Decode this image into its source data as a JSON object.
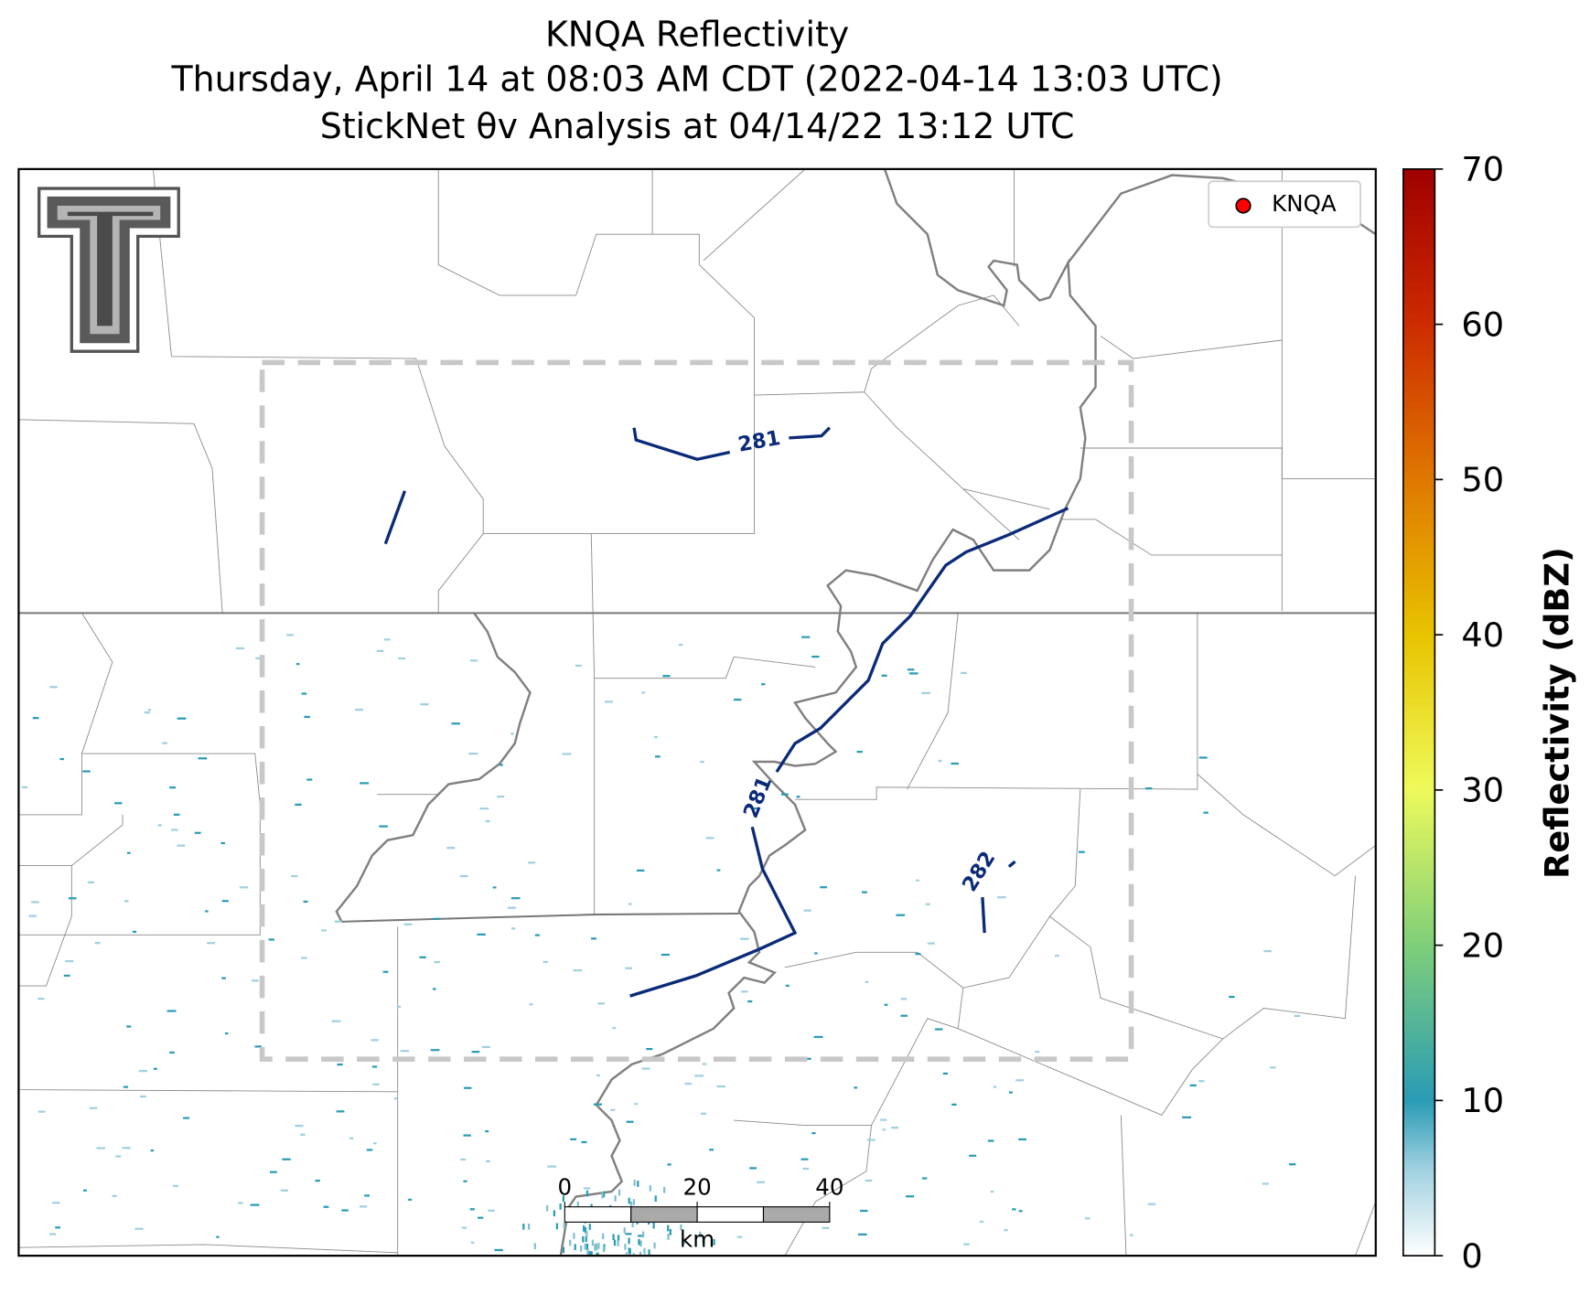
{
  "title": [
    "KNQA Reflectivity",
    "Thursday, April 14 at 08:03 AM CDT (2022-04-14 13:03 UTC)",
    "StickNet θv Analysis at 04/14/22 13:12 UTC"
  ],
  "legend": {
    "label": "KNQA"
  },
  "contour_labels": [
    "281",
    "281",
    "282"
  ],
  "colorbar": {
    "label": "Reflectivity (dBZ)",
    "lim": [
      0,
      70
    ],
    "ticks": [
      0,
      10,
      20,
      30,
      40,
      50,
      60,
      70
    ]
  },
  "scale_bar": {
    "ticks": [
      0,
      20,
      40
    ],
    "lim": [
      0,
      40
    ],
    "unit": "km"
  }
}
